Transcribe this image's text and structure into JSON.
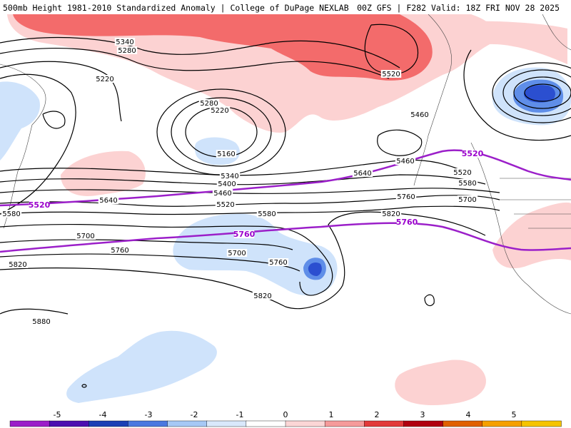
{
  "header": {
    "title_left": "500mb Height 1981-2010 Standardized Anomaly | College of DuPage NEXLAB",
    "title_right": "00Z GFS | F282 Valid: 18Z FRI NOV 28 2025"
  },
  "contour_labels": [
    {
      "text": "5340",
      "kind": "black"
    },
    {
      "text": "5280",
      "kind": "black"
    },
    {
      "text": "5220",
      "kind": "black"
    },
    {
      "text": "5520",
      "kind": "black"
    },
    {
      "text": "5280",
      "kind": "black"
    },
    {
      "text": "5220",
      "kind": "black"
    },
    {
      "text": "5160",
      "kind": "black"
    },
    {
      "text": "5460",
      "kind": "black"
    },
    {
      "text": "5460",
      "kind": "black"
    },
    {
      "text": "5340",
      "kind": "black"
    },
    {
      "text": "5400",
      "kind": "black"
    },
    {
      "text": "5460",
      "kind": "black"
    },
    {
      "text": "5520",
      "kind": "black"
    },
    {
      "text": "5640",
      "kind": "black"
    },
    {
      "text": "5520",
      "kind": "black"
    },
    {
      "text": "5580",
      "kind": "black"
    },
    {
      "text": "5700",
      "kind": "black"
    },
    {
      "text": "5760",
      "kind": "black"
    },
    {
      "text": "5820",
      "kind": "black"
    },
    {
      "text": "5580",
      "kind": "black"
    },
    {
      "text": "5640",
      "kind": "black"
    },
    {
      "text": "5580",
      "kind": "black"
    },
    {
      "text": "5700",
      "kind": "black"
    },
    {
      "text": "5700",
      "kind": "black"
    },
    {
      "text": "5760",
      "kind": "black"
    },
    {
      "text": "5760",
      "kind": "black"
    },
    {
      "text": "5820",
      "kind": "black"
    },
    {
      "text": "5820",
      "kind": "black"
    },
    {
      "text": "5880",
      "kind": "black"
    },
    {
      "text": "5520",
      "kind": "purple"
    },
    {
      "text": "5520",
      "kind": "purple"
    },
    {
      "text": "5760",
      "kind": "purple"
    },
    {
      "text": "5760",
      "kind": "purple"
    }
  ],
  "colorbar": {
    "ticks": [
      "-5",
      "-4",
      "-3",
      "-2",
      "-1",
      "0",
      "1",
      "2",
      "3",
      "4",
      "5"
    ],
    "colors": [
      "#9b1fc9",
      "#4b0fb0",
      "#1c3fb5",
      "#4a78e0",
      "#a6c8f5",
      "#d9e8fb",
      "#ffffff",
      "#fbd6d6",
      "#f59a9a",
      "#e23a3a",
      "#b00010",
      "#e06000",
      "#f5a000",
      "#f5c400"
    ]
  },
  "colors": {
    "neg1": "#cfe3fb",
    "neg2": "#5f8ee8",
    "neg3": "#2b4fd0",
    "pos1": "#fcd2d2",
    "pos2": "#f36b6b",
    "contour": "#000000",
    "purple": "#9b1fc9"
  }
}
